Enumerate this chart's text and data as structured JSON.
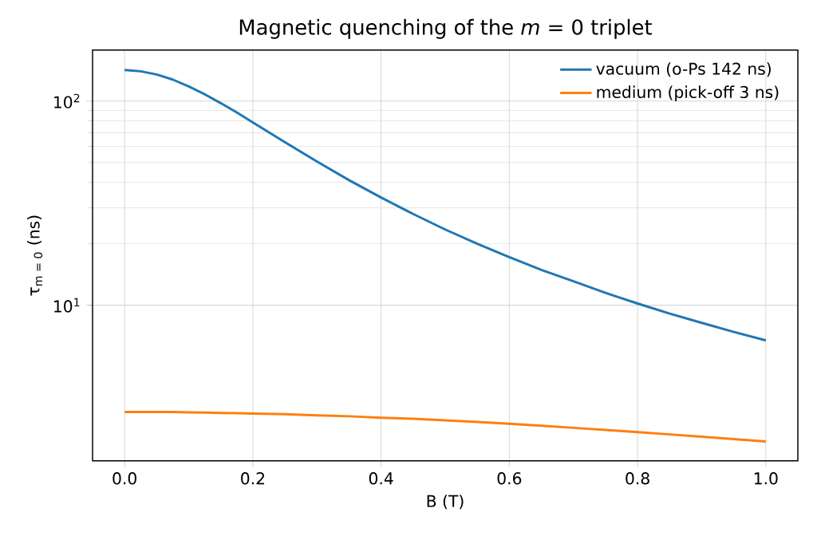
{
  "chart_data": {
    "type": "line",
    "title": "Magnetic quenching of the *m* = 0 triplet",
    "xlabel": "B (T)",
    "ylabel": "τ$_{m = 0}$ (ns)",
    "x": [
      0,
      0.025,
      0.05,
      0.075,
      0.1,
      0.125,
      0.15,
      0.175,
      0.2,
      0.25,
      0.3,
      0.35,
      0.4,
      0.45,
      0.5,
      0.55,
      0.6,
      0.65,
      0.7,
      0.75,
      0.8,
      0.85,
      0.9,
      0.95,
      1.0
    ],
    "series": [
      {
        "name": "vacuum (o-Ps 142 ns)",
        "color": "#1f77b4",
        "values": [
          142,
          140,
          135,
          127.5,
          118,
          108,
          97.7,
          87.9,
          78.7,
          62.9,
          50.6,
          41.0,
          33.7,
          28.0,
          23.5,
          20.0,
          17.2,
          14.9,
          13.1,
          11.5,
          10.2,
          9.1,
          8.2,
          7.4,
          6.73
        ]
      },
      {
        "name": "medium (pick-off 3 ns)",
        "color": "#ff7f0e",
        "values": [
          3.0,
          3.0,
          3.0,
          3.0,
          2.99,
          2.98,
          2.97,
          2.96,
          2.95,
          2.93,
          2.89,
          2.86,
          2.81,
          2.78,
          2.73,
          2.68,
          2.63,
          2.57,
          2.51,
          2.45,
          2.39,
          2.33,
          2.27,
          2.21,
          2.15
        ]
      }
    ],
    "log": "y",
    "xlim": [
      -0.05,
      1.05
    ],
    "ylim": [
      1.73,
      178
    ],
    "xticks": [
      {
        "value": 0,
        "label": "0.0"
      },
      0.2,
      0.4,
      0.6,
      0.8,
      {
        "value": 1,
        "label": "1.0"
      }
    ],
    "yticks": [
      {
        "value": 10,
        "label": "10$^{1}$"
      },
      {
        "value": 100,
        "label": "10$^{2}$"
      }
    ],
    "grid": true,
    "legend": "top right",
    "line_style": "solid",
    "marker": "none"
  }
}
